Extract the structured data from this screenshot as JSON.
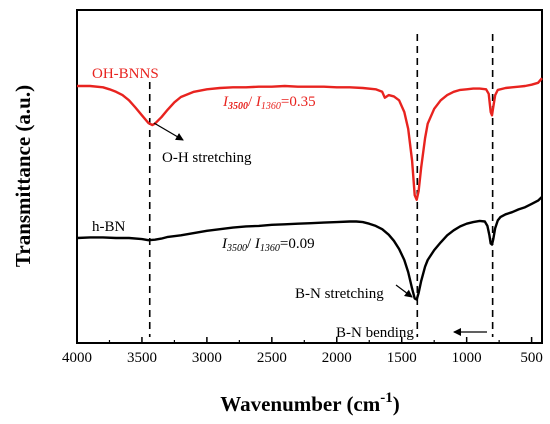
{
  "chart_data": {
    "type": "line",
    "xlabel": "Wavenumber (cm",
    "xlabel_sup": "-1",
    "xlabel_close": ")",
    "ylabel": "Transmittance (a.u.)",
    "xlim": [
      4000,
      420
    ],
    "x_reversed": true,
    "y_ticks_shown": false,
    "grid": false,
    "x_ticks": [
      4000,
      3500,
      3000,
      2500,
      2000,
      1500,
      1000,
      500
    ],
    "x_tick_labels": [
      "4000",
      "3500",
      "3000",
      "2500",
      "2000",
      "1500",
      "1000",
      "500"
    ],
    "series": [
      {
        "name": "OH-BNNS",
        "color": "#e8231f",
        "x": [
          4000,
          3900,
          3800,
          3750,
          3700,
          3650,
          3600,
          3550,
          3500,
          3450,
          3420,
          3400,
          3350,
          3300,
          3250,
          3200,
          3100,
          3000,
          2900,
          2800,
          2700,
          2600,
          2500,
          2400,
          2300,
          2200,
          2100,
          2000,
          1900,
          1800,
          1700,
          1650,
          1630,
          1600,
          1560,
          1520,
          1480,
          1450,
          1420,
          1400,
          1385,
          1370,
          1350,
          1320,
          1300,
          1250,
          1200,
          1150,
          1100,
          1050,
          1000,
          950,
          900,
          850,
          830,
          815,
          805,
          795,
          780,
          760,
          700,
          650,
          600,
          550,
          500,
          450,
          420
        ],
        "y": [
          0.0,
          0.0,
          0.02,
          0.05,
          0.09,
          0.14,
          0.22,
          0.33,
          0.45,
          0.57,
          0.6,
          0.58,
          0.48,
          0.36,
          0.25,
          0.17,
          0.09,
          0.05,
          0.03,
          0.02,
          0.02,
          0.01,
          0.01,
          0.0,
          0.01,
          0.01,
          0.01,
          0.02,
          0.02,
          0.03,
          0.05,
          0.09,
          0.18,
          0.14,
          0.16,
          0.22,
          0.4,
          0.66,
          1.15,
          1.68,
          1.75,
          1.62,
          1.25,
          0.8,
          0.58,
          0.35,
          0.22,
          0.14,
          0.09,
          0.06,
          0.05,
          0.04,
          0.04,
          0.05,
          0.12,
          0.4,
          0.45,
          0.32,
          0.14,
          0.06,
          0.03,
          0.02,
          0.01,
          0.0,
          -0.02,
          -0.05,
          -0.12
        ]
      },
      {
        "name": "h-BN",
        "color": "#000000",
        "x": [
          4000,
          3900,
          3800,
          3700,
          3600,
          3500,
          3450,
          3400,
          3350,
          3300,
          3200,
          3100,
          3000,
          2900,
          2800,
          2700,
          2600,
          2500,
          2400,
          2300,
          2200,
          2100,
          2000,
          1900,
          1850,
          1800,
          1750,
          1700,
          1650,
          1600,
          1560,
          1520,
          1480,
          1450,
          1420,
          1400,
          1385,
          1370,
          1350,
          1320,
          1300,
          1250,
          1200,
          1150,
          1100,
          1050,
          1000,
          950,
          900,
          860,
          840,
          825,
          815,
          805,
          795,
          780,
          760,
          740,
          700,
          650,
          600,
          550,
          500,
          450,
          420
        ],
        "y": [
          0.0,
          -0.01,
          -0.01,
          0.0,
          0.0,
          0.02,
          0.04,
          0.03,
          0.01,
          -0.02,
          -0.05,
          -0.09,
          -0.13,
          -0.16,
          -0.19,
          -0.21,
          -0.22,
          -0.24,
          -0.25,
          -0.26,
          -0.27,
          -0.28,
          -0.29,
          -0.3,
          -0.3,
          -0.29,
          -0.26,
          -0.22,
          -0.16,
          -0.06,
          0.05,
          0.2,
          0.4,
          0.62,
          0.92,
          1.1,
          1.12,
          1.0,
          0.78,
          0.52,
          0.4,
          0.22,
          0.08,
          -0.05,
          -0.14,
          -0.21,
          -0.26,
          -0.29,
          -0.31,
          -0.3,
          -0.22,
          -0.05,
          0.1,
          0.12,
          0.02,
          -0.18,
          -0.32,
          -0.38,
          -0.43,
          -0.47,
          -0.52,
          -0.56,
          -0.62,
          -0.68,
          -0.75
        ]
      }
    ],
    "vertical_lines": [
      {
        "x": 3440,
        "style": "dashed"
      },
      {
        "x": 1380,
        "style": "dashed"
      },
      {
        "x": 800,
        "style": "dashed"
      }
    ],
    "annotations": {
      "oh_label": "OH-BNNS",
      "hbn_label": "h-BN",
      "ratio_oh": {
        "i": "I",
        "sub1": "3500",
        "slash": "/ ",
        "sub2": "1360",
        "value": "=0.35"
      },
      "ratio_hbn": {
        "i": "I",
        "sub1": "3500",
        "slash": "/ ",
        "sub2": "1360",
        "value": "=0.09"
      },
      "oh_stretching": "O-H stretching",
      "bn_stretching": "B-N stretching",
      "bn_bending": "B-N bending"
    }
  }
}
